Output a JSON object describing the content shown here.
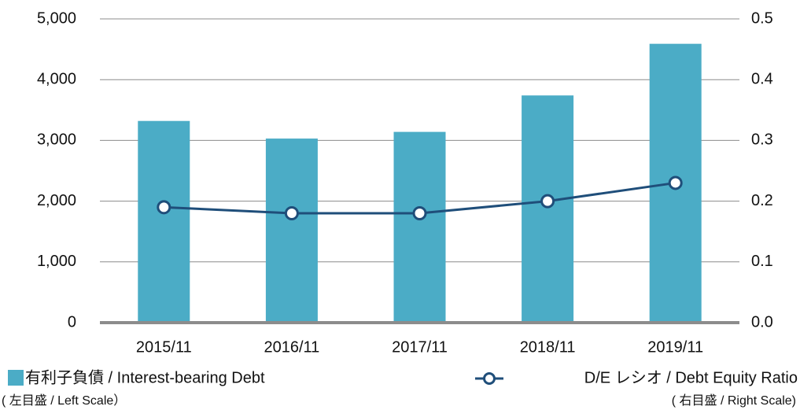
{
  "chart_data": {
    "type": "bar",
    "categories": [
      "2015/11",
      "2016/11",
      "2017/11",
      "2018/11",
      "2019/11"
    ],
    "series": [
      {
        "name": "有利子負債 / Interest-bearing Debt",
        "scale_note": "( 左目盛 / Left Scale）",
        "type": "bar",
        "color": "#4bacc6",
        "values": [
          3320,
          3030,
          3140,
          3740,
          4590
        ]
      },
      {
        "name": "D/E レシオ / Debt Equity Ratio",
        "scale_note": "( 右目盛 / Right Scale)",
        "type": "line",
        "axis": "y2",
        "color": "#1f4e7a",
        "values": [
          0.19,
          0.18,
          0.18,
          0.2,
          0.23
        ]
      }
    ],
    "ylim": [
      0,
      5000
    ],
    "yticks": [
      0,
      {
        "value": 1000,
        "label": "1,000"
      },
      {
        "value": 2000,
        "label": "2,000"
      },
      {
        "value": 3000,
        "label": "3,000"
      },
      {
        "value": 4000,
        "label": "4,000"
      },
      {
        "value": 5000,
        "label": "5,000"
      }
    ],
    "y2lim": [
      0,
      0.5
    ],
    "y2ticks": [
      {
        "value": 0,
        "label": "0.0"
      },
      0.1,
      0.2,
      0.3,
      0.4,
      0.5
    ],
    "grid": true
  }
}
